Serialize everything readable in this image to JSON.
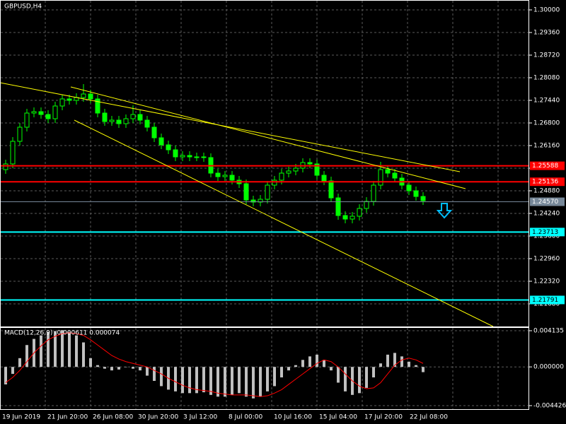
{
  "chart_data": [
    {
      "type": "candlestick",
      "title": "GBPUSD,H4",
      "open": [
        1.2548,
        1.2564,
        1.2628,
        1.2668,
        1.2708,
        1.2712,
        1.2704,
        1.2692,
        1.2728,
        1.2748,
        1.2744,
        1.2752,
        1.2762,
        1.2748,
        1.2708,
        1.2684,
        1.2688,
        1.2678,
        1.2692,
        1.2704,
        1.2688,
        1.2668,
        1.2638,
        1.2618,
        1.2604,
        1.2584,
        1.2588,
        1.2584,
        1.2584,
        1.2582,
        1.2538,
        1.2528,
        1.2532,
        1.2518,
        1.2508,
        1.2462,
        1.2456,
        1.2464,
        1.2504,
        1.2518,
        1.2538,
        1.2544,
        1.2552,
        1.2568,
        1.2564,
        1.2532,
        1.2516,
        1.2468,
        1.2418,
        1.2408,
        1.2416,
        1.2438,
        1.2458,
        1.2504,
        1.2548,
        1.2538,
        1.2524,
        1.2504,
        1.2488,
        1.2472
      ],
      "high": [
        1.2576,
        1.264,
        1.268,
        1.272,
        1.2724,
        1.2724,
        1.2716,
        1.274,
        1.276,
        1.276,
        1.2764,
        1.279,
        1.2774,
        1.276,
        1.272,
        1.27,
        1.27,
        1.2704,
        1.273,
        1.2716,
        1.27,
        1.268,
        1.265,
        1.263,
        1.2616,
        1.26,
        1.26,
        1.2596,
        1.2596,
        1.2594,
        1.255,
        1.2544,
        1.2544,
        1.253,
        1.252,
        1.2474,
        1.2476,
        1.2516,
        1.253,
        1.255,
        1.2556,
        1.2564,
        1.258,
        1.258,
        1.2576,
        1.2544,
        1.2528,
        1.248,
        1.243,
        1.2428,
        1.245,
        1.247,
        1.2516,
        1.257,
        1.256,
        1.255,
        1.2536,
        1.2516,
        1.25,
        1.2484
      ],
      "low": [
        1.2536,
        1.2552,
        1.2616,
        1.2656,
        1.2696,
        1.2692,
        1.268,
        1.268,
        1.2716,
        1.2732,
        1.2732,
        1.274,
        1.2736,
        1.2696,
        1.2672,
        1.2672,
        1.2666,
        1.2666,
        1.268,
        1.2676,
        1.2656,
        1.2626,
        1.2606,
        1.2592,
        1.2572,
        1.2572,
        1.2572,
        1.2572,
        1.257,
        1.2526,
        1.2516,
        1.2516,
        1.2506,
        1.2496,
        1.245,
        1.2444,
        1.2444,
        1.2452,
        1.2492,
        1.2506,
        1.2526,
        1.2532,
        1.254,
        1.2552,
        1.252,
        1.2504,
        1.2456,
        1.2406,
        1.2396,
        1.2396,
        1.2404,
        1.2426,
        1.2446,
        1.2492,
        1.2526,
        1.2512,
        1.2492,
        1.2476,
        1.246,
        1.2448
      ],
      "close": [
        1.2564,
        1.2628,
        1.2668,
        1.2708,
        1.2712,
        1.2704,
        1.2692,
        1.2728,
        1.2748,
        1.2744,
        1.2752,
        1.2762,
        1.2748,
        1.2708,
        1.2684,
        1.2688,
        1.2678,
        1.2692,
        1.2704,
        1.2688,
        1.2668,
        1.2638,
        1.2618,
        1.2604,
        1.2584,
        1.2588,
        1.2584,
        1.2584,
        1.2582,
        1.2538,
        1.2528,
        1.2532,
        1.2518,
        1.2508,
        1.2462,
        1.2456,
        1.2464,
        1.2504,
        1.2518,
        1.2538,
        1.2544,
        1.2552,
        1.2568,
        1.2564,
        1.2532,
        1.2516,
        1.2468,
        1.2418,
        1.2408,
        1.2416,
        1.2438,
        1.2458,
        1.2504,
        1.2548,
        1.2538,
        1.2524,
        1.2504,
        1.2488,
        1.2472,
        1.246
      ],
      "up_color": "#000000",
      "down_color": "#00ff00",
      "wick_color": "#00ff00",
      "ylim": [
        1.3028,
        1.2104
      ],
      "yticks": [
        {
          "value": 1.3,
          "label": "1.30000"
        },
        {
          "value": 1.2936,
          "label": "1.29360"
        },
        {
          "value": 1.2872,
          "label": "1.28720"
        },
        {
          "value": 1.2808,
          "label": "1.28080"
        },
        {
          "value": 1.2744,
          "label": "1.27440"
        },
        {
          "value": 1.268,
          "label": "1.26800"
        },
        {
          "value": 1.2616,
          "label": "1.26160"
        },
        {
          "value": 1.2552,
          "label": "1.25520"
        },
        {
          "value": 1.2488,
          "label": "1.24880"
        },
        {
          "value": 1.2424,
          "label": "1.24240"
        },
        {
          "value": 1.236,
          "label": "1.23600"
        },
        {
          "value": 1.2296,
          "label": "1.22960"
        },
        {
          "value": 1.2232,
          "label": "1.22320"
        },
        {
          "value": 1.2168,
          "label": "1.21680"
        }
      ],
      "levels": [
        {
          "value": 1.25588,
          "label": "1.25588",
          "color": "#ff0000"
        },
        {
          "value": 1.25136,
          "label": "1.25136",
          "color": "#ff0000"
        },
        {
          "value": 1.2457,
          "label": "1.24570",
          "color": "#778899"
        },
        {
          "value": 1.23713,
          "label": "1.23713",
          "color": "#00ffff"
        },
        {
          "value": 1.21791,
          "label": "1.21791",
          "color": "#00ffff"
        }
      ],
      "x_tick_labels": [
        "19 Jun 2019",
        "21 Jun 20:00",
        "26 Jun 08:00",
        "30 Jun 20:00",
        "3 Jul 12:00",
        "8 Jul 00:00",
        "10 Jul 16:00",
        "15 Jul 04:00",
        "17 Jul 20:00",
        "22 Jul 08:00"
      ],
      "grid": true
    },
    {
      "type": "macd",
      "title": "MACD(12,26,9) -0.000611 0.000074",
      "bars": {
        "color": "#c0c0c0",
        "values": [
          -0.002,
          -0.0008,
          0.001,
          0.0025,
          0.0032,
          0.0036,
          0.004,
          0.0041,
          0.0042,
          0.004,
          0.0036,
          0.0028,
          0.001,
          0.0002,
          -0.0002,
          -0.0004,
          -0.0003,
          0,
          -0.0002,
          -0.0004,
          -0.001,
          -0.0016,
          -0.0022,
          -0.0026,
          -0.0028,
          -0.003,
          -0.003,
          -0.003,
          -0.0029,
          -0.0032,
          -0.0034,
          -0.0034,
          -0.0032,
          -0.003,
          -0.0034,
          -0.0036,
          -0.0034,
          -0.0028,
          -0.0022,
          -0.0012,
          -0.0004,
          0.0002,
          0.0008,
          0.0012,
          0.0014,
          0.0008,
          -0.0004,
          -0.0018,
          -0.0028,
          -0.0032,
          -0.003,
          -0.0024,
          -0.0012,
          0.0004,
          0.0014,
          0.0016,
          0.0012,
          0.0006,
          0.0002,
          -0.0006
        ]
      },
      "signal": {
        "color": "#ff0000",
        "values": [
          -0.0018,
          -0.0012,
          -0.0004,
          0.0006,
          0.0016,
          0.0024,
          0.0031,
          0.0035,
          0.0038,
          0.0039,
          0.0038,
          0.0036,
          0.0031,
          0.0025,
          0.0019,
          0.0013,
          0.0009,
          0.0006,
          0.0004,
          0.0002,
          0,
          -0.0004,
          -0.0008,
          -0.0013,
          -0.0017,
          -0.0021,
          -0.0024,
          -0.0026,
          -0.0027,
          -0.0028,
          -0.003,
          -0.0031,
          -0.0032,
          -0.0032,
          -0.0032,
          -0.0033,
          -0.0034,
          -0.0033,
          -0.003,
          -0.0026,
          -0.002,
          -0.0014,
          -0.0008,
          -0.0002,
          0.0004,
          0.0008,
          0.0006,
          0,
          -0.0008,
          -0.0016,
          -0.0022,
          -0.0025,
          -0.0024,
          -0.0018,
          -0.0008,
          0.0002,
          0.0008,
          0.001,
          0.0008,
          0.0004
        ]
      },
      "ylim": [
        0.004539,
        -0.004911
      ],
      "yticks": [
        0.004135,
        {
          "value": 0,
          "label": "0.000000"
        },
        -0.004426
      ],
      "grid": true
    }
  ]
}
